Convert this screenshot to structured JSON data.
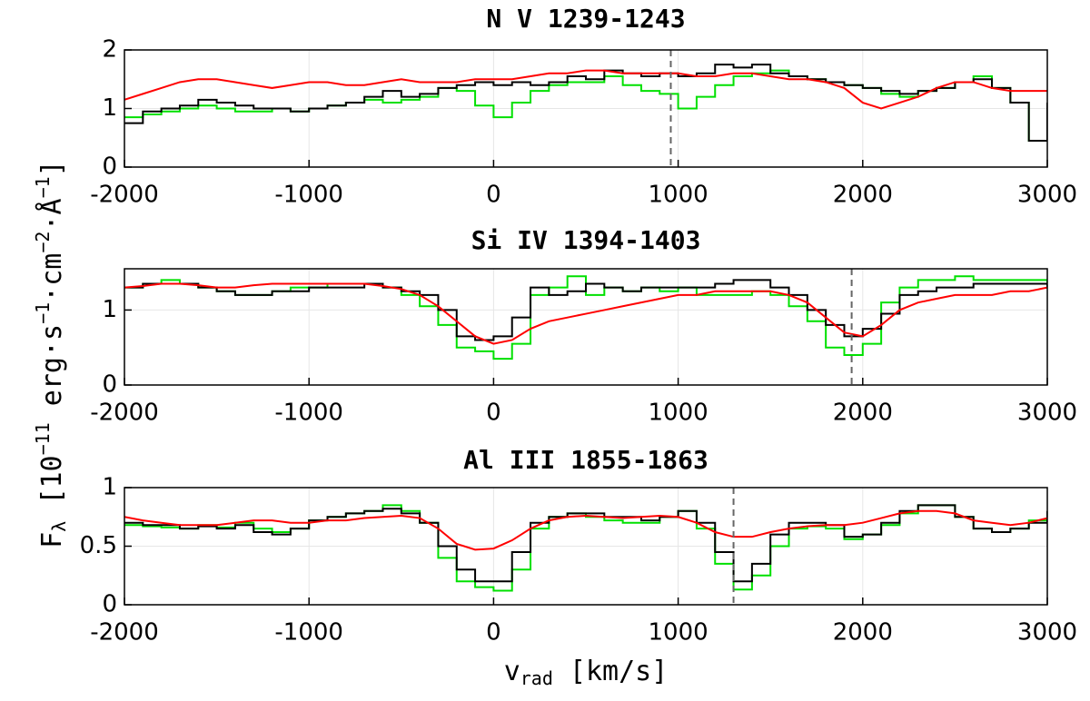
{
  "ylabel": [
    {
      "text": "F"
    },
    {
      "text": "λ",
      "shift": "sub"
    },
    {
      "text": " [10"
    },
    {
      "text": "−11",
      "shift": "super"
    },
    {
      "text": " erg·s"
    },
    {
      "text": "−1",
      "shift": "super"
    },
    {
      "text": "·cm"
    },
    {
      "text": "−2",
      "shift": "super"
    },
    {
      "text": "·Å"
    },
    {
      "text": "−1",
      "shift": "super"
    },
    {
      "text": "]"
    }
  ],
  "xlabel": [
    {
      "text": "v"
    },
    {
      "text": "rad",
      "shift": "sub"
    },
    {
      "text": " [km/s]"
    }
  ],
  "chart_data": [
    {
      "type": "line",
      "title": "N V 1239-1243",
      "xlim": [
        -2000,
        3000
      ],
      "xticks": [
        -2000,
        -1000,
        0,
        1000,
        2000,
        3000
      ],
      "ylim": [
        0,
        2
      ],
      "yticks": [
        0,
        1,
        2
      ],
      "grid": true,
      "vline": 960,
      "x": [
        -2000,
        -1900,
        -1800,
        -1700,
        -1600,
        -1500,
        -1400,
        -1300,
        -1200,
        -1100,
        -1000,
        -900,
        -800,
        -700,
        -600,
        -500,
        -400,
        -300,
        -200,
        -100,
        0,
        100,
        200,
        300,
        400,
        500,
        600,
        700,
        800,
        900,
        1000,
        1100,
        1200,
        1300,
        1400,
        1500,
        1600,
        1700,
        1800,
        1900,
        2000,
        2100,
        2200,
        2300,
        2400,
        2500,
        2600,
        2700,
        2800,
        2900,
        3000
      ],
      "series": [
        {
          "color": "#00e000",
          "drawstyle": "steps",
          "values": [
            0.85,
            0.9,
            0.95,
            1.0,
            1.05,
            1.0,
            0.95,
            0.95,
            1.0,
            0.95,
            1.0,
            1.05,
            1.1,
            1.15,
            1.1,
            1.15,
            1.2,
            1.35,
            1.3,
            1.05,
            0.85,
            1.1,
            1.3,
            1.4,
            1.45,
            1.45,
            1.55,
            1.4,
            1.3,
            1.25,
            1.0,
            1.2,
            1.4,
            1.55,
            1.6,
            1.65,
            1.55,
            1.5,
            1.45,
            1.4,
            1.35,
            1.25,
            1.2,
            1.3,
            1.35,
            1.45,
            1.55,
            1.35,
            1.1,
            0.45,
            1.1
          ]
        },
        {
          "color": "#000000",
          "drawstyle": "steps",
          "values": [
            0.75,
            0.95,
            1.0,
            1.05,
            1.15,
            1.1,
            1.05,
            1.0,
            1.0,
            0.95,
            1.0,
            1.05,
            1.1,
            1.2,
            1.3,
            1.2,
            1.25,
            1.35,
            1.4,
            1.45,
            1.4,
            1.45,
            1.4,
            1.45,
            1.55,
            1.5,
            1.65,
            1.6,
            1.55,
            1.6,
            1.55,
            1.6,
            1.75,
            1.7,
            1.75,
            1.6,
            1.55,
            1.5,
            1.45,
            1.4,
            1.35,
            1.3,
            1.25,
            1.3,
            1.35,
            1.45,
            1.5,
            1.35,
            1.1,
            0.45,
            1.1
          ]
        },
        {
          "color": "#ff0000",
          "drawstyle": "smooth",
          "values": [
            1.15,
            1.25,
            1.35,
            1.45,
            1.5,
            1.5,
            1.45,
            1.4,
            1.35,
            1.4,
            1.45,
            1.45,
            1.4,
            1.4,
            1.45,
            1.5,
            1.45,
            1.45,
            1.45,
            1.5,
            1.5,
            1.5,
            1.55,
            1.6,
            1.6,
            1.65,
            1.65,
            1.6,
            1.6,
            1.6,
            1.6,
            1.55,
            1.55,
            1.6,
            1.6,
            1.55,
            1.5,
            1.5,
            1.45,
            1.35,
            1.1,
            1.0,
            1.1,
            1.2,
            1.35,
            1.45,
            1.45,
            1.35,
            1.3,
            1.3,
            1.3
          ]
        }
      ]
    },
    {
      "type": "line",
      "title": "Si IV 1394-1403",
      "xlim": [
        -2000,
        3000
      ],
      "xticks": [
        -2000,
        -1000,
        0,
        1000,
        2000,
        3000
      ],
      "ylim": [
        0,
        1.55
      ],
      "yticks": [
        0,
        1
      ],
      "grid": true,
      "vline": 1940,
      "x": [
        -2000,
        -1900,
        -1800,
        -1700,
        -1600,
        -1500,
        -1400,
        -1300,
        -1200,
        -1100,
        -1000,
        -900,
        -800,
        -700,
        -600,
        -500,
        -400,
        -300,
        -200,
        -100,
        0,
        100,
        200,
        300,
        400,
        500,
        600,
        700,
        800,
        900,
        1000,
        1100,
        1200,
        1300,
        1400,
        1500,
        1600,
        1700,
        1800,
        1900,
        2000,
        2100,
        2200,
        2300,
        2400,
        2500,
        2600,
        2700,
        2800,
        2900,
        3000
      ],
      "series": [
        {
          "color": "#00e000",
          "drawstyle": "steps",
          "values": [
            1.3,
            1.35,
            1.4,
            1.35,
            1.3,
            1.25,
            1.2,
            1.2,
            1.25,
            1.3,
            1.3,
            1.35,
            1.35,
            1.35,
            1.3,
            1.2,
            1.05,
            0.8,
            0.5,
            0.45,
            0.35,
            0.55,
            1.2,
            1.3,
            1.45,
            1.2,
            1.3,
            1.25,
            1.3,
            1.25,
            1.3,
            1.2,
            1.2,
            1.2,
            1.25,
            1.2,
            1.05,
            0.85,
            0.5,
            0.4,
            0.55,
            1.1,
            1.3,
            1.4,
            1.4,
            1.45,
            1.4,
            1.4,
            1.4,
            1.4,
            1.3
          ]
        },
        {
          "color": "#000000",
          "drawstyle": "steps",
          "values": [
            1.3,
            1.35,
            1.35,
            1.35,
            1.3,
            1.25,
            1.2,
            1.2,
            1.25,
            1.25,
            1.3,
            1.3,
            1.3,
            1.35,
            1.3,
            1.25,
            1.2,
            1.0,
            0.65,
            0.6,
            0.65,
            0.9,
            1.3,
            1.2,
            1.25,
            1.35,
            1.3,
            1.25,
            1.3,
            1.3,
            1.3,
            1.3,
            1.35,
            1.4,
            1.4,
            1.3,
            1.2,
            1.0,
            0.8,
            0.65,
            0.75,
            0.95,
            1.2,
            1.25,
            1.3,
            1.3,
            1.35,
            1.35,
            1.35,
            1.35,
            1.3
          ]
        },
        {
          "color": "#ff0000",
          "drawstyle": "smooth",
          "values": [
            1.3,
            1.32,
            1.35,
            1.35,
            1.33,
            1.3,
            1.3,
            1.33,
            1.35,
            1.35,
            1.35,
            1.35,
            1.35,
            1.35,
            1.32,
            1.28,
            1.2,
            1.05,
            0.85,
            0.65,
            0.55,
            0.6,
            0.75,
            0.85,
            0.9,
            0.95,
            1.0,
            1.05,
            1.1,
            1.15,
            1.2,
            1.2,
            1.25,
            1.25,
            1.25,
            1.25,
            1.2,
            1.1,
            0.9,
            0.7,
            0.65,
            0.8,
            1.0,
            1.1,
            1.15,
            1.2,
            1.2,
            1.2,
            1.25,
            1.25,
            1.3
          ]
        }
      ]
    },
    {
      "type": "line",
      "title": "Al III 1855-1863",
      "xlim": [
        -2000,
        3000
      ],
      "xticks": [
        -2000,
        -1000,
        0,
        1000,
        2000,
        3000
      ],
      "ylim": [
        0,
        1
      ],
      "yticks": [
        0,
        0.5,
        1
      ],
      "grid": true,
      "vline": 1300,
      "x": [
        -2000,
        -1900,
        -1800,
        -1700,
        -1600,
        -1500,
        -1400,
        -1300,
        -1200,
        -1100,
        -1000,
        -900,
        -800,
        -700,
        -600,
        -500,
        -400,
        -300,
        -200,
        -100,
        0,
        100,
        200,
        300,
        400,
        500,
        600,
        700,
        800,
        900,
        1000,
        1100,
        1200,
        1300,
        1400,
        1500,
        1600,
        1700,
        1800,
        1900,
        2000,
        2100,
        2200,
        2300,
        2400,
        2500,
        2600,
        2700,
        2800,
        2900,
        3000
      ],
      "series": [
        {
          "color": "#00e000",
          "drawstyle": "steps",
          "values": [
            0.68,
            0.67,
            0.66,
            0.65,
            0.68,
            0.66,
            0.7,
            0.65,
            0.62,
            0.65,
            0.72,
            0.75,
            0.78,
            0.8,
            0.85,
            0.8,
            0.7,
            0.4,
            0.2,
            0.15,
            0.12,
            0.3,
            0.65,
            0.75,
            0.78,
            0.75,
            0.72,
            0.7,
            0.7,
            0.75,
            0.8,
            0.65,
            0.35,
            0.13,
            0.25,
            0.5,
            0.65,
            0.67,
            0.65,
            0.56,
            0.6,
            0.68,
            0.78,
            0.85,
            0.85,
            0.75,
            0.65,
            0.62,
            0.65,
            0.72,
            0.78
          ]
        },
        {
          "color": "#000000",
          "drawstyle": "steps",
          "values": [
            0.7,
            0.68,
            0.68,
            0.65,
            0.67,
            0.65,
            0.68,
            0.62,
            0.6,
            0.65,
            0.72,
            0.75,
            0.78,
            0.8,
            0.82,
            0.78,
            0.7,
            0.5,
            0.3,
            0.2,
            0.2,
            0.45,
            0.7,
            0.75,
            0.78,
            0.78,
            0.75,
            0.75,
            0.72,
            0.75,
            0.8,
            0.7,
            0.45,
            0.2,
            0.35,
            0.6,
            0.7,
            0.7,
            0.68,
            0.58,
            0.6,
            0.7,
            0.8,
            0.85,
            0.85,
            0.75,
            0.65,
            0.62,
            0.65,
            0.7,
            0.8
          ]
        },
        {
          "color": "#ff0000",
          "drawstyle": "smooth",
          "values": [
            0.75,
            0.72,
            0.7,
            0.68,
            0.68,
            0.68,
            0.7,
            0.72,
            0.72,
            0.7,
            0.7,
            0.72,
            0.72,
            0.74,
            0.75,
            0.76,
            0.74,
            0.65,
            0.52,
            0.47,
            0.48,
            0.55,
            0.65,
            0.72,
            0.75,
            0.76,
            0.75,
            0.74,
            0.75,
            0.76,
            0.75,
            0.7,
            0.62,
            0.58,
            0.58,
            0.62,
            0.65,
            0.67,
            0.68,
            0.68,
            0.7,
            0.74,
            0.78,
            0.8,
            0.8,
            0.78,
            0.72,
            0.7,
            0.68,
            0.7,
            0.74
          ]
        }
      ]
    }
  ]
}
